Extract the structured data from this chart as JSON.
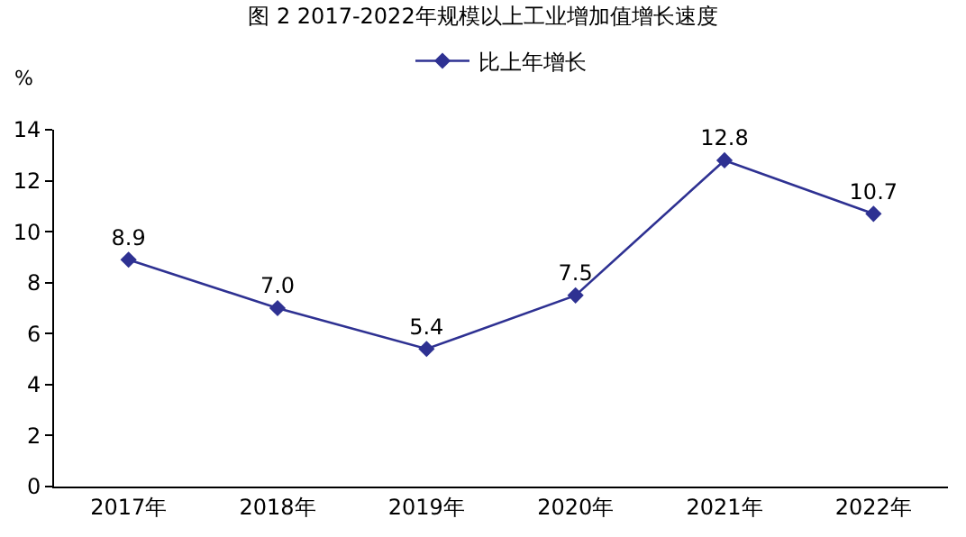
{
  "chart_data": {
    "type": "line",
    "title": "图 2 2017-2022年规模以上工业增加值增长速度",
    "ylabel": "%",
    "categories": [
      "2017年",
      "2018年",
      "2019年",
      "2020年",
      "2021年",
      "2022年"
    ],
    "series": [
      {
        "name": "比上年增长",
        "color": "#2e3192",
        "values": [
          8.9,
          7.0,
          5.4,
          7.5,
          12.8,
          10.7
        ],
        "value_labels": [
          "8.9",
          "7.0",
          "5.4",
          "7.5",
          "12.8",
          "10.7"
        ]
      }
    ],
    "ylim": [
      0,
      14
    ],
    "yticks": [
      0,
      2,
      4,
      6,
      8,
      10,
      12,
      14
    ],
    "grid": false,
    "legend": "top",
    "marker": "diamond",
    "line_style": "solid"
  }
}
